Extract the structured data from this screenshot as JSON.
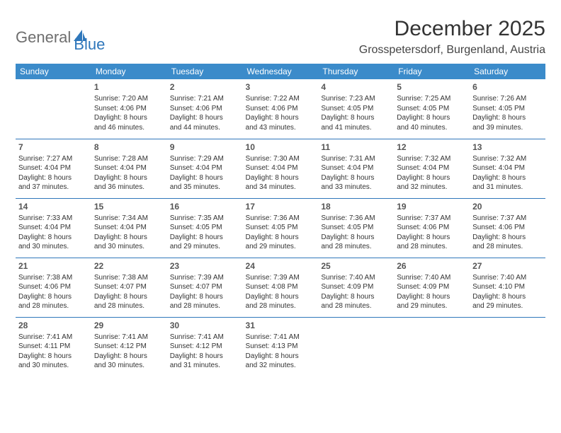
{
  "brand": {
    "word1": "General",
    "word2": "Blue",
    "color1": "#6e6e6e",
    "color2": "#2f77bb"
  },
  "title": "December 2025",
  "location": "Grosspetersdorf, Burgenland, Austria",
  "header_bg": "#3b8bca",
  "rule_color": "#2f77bb",
  "weekdays": [
    "Sunday",
    "Monday",
    "Tuesday",
    "Wednesday",
    "Thursday",
    "Friday",
    "Saturday"
  ],
  "weeks": [
    [
      null,
      {
        "n": "1",
        "sr": "Sunrise: 7:20 AM",
        "ss": "Sunset: 4:06 PM",
        "d1": "Daylight: 8 hours",
        "d2": "and 46 minutes."
      },
      {
        "n": "2",
        "sr": "Sunrise: 7:21 AM",
        "ss": "Sunset: 4:06 PM",
        "d1": "Daylight: 8 hours",
        "d2": "and 44 minutes."
      },
      {
        "n": "3",
        "sr": "Sunrise: 7:22 AM",
        "ss": "Sunset: 4:06 PM",
        "d1": "Daylight: 8 hours",
        "d2": "and 43 minutes."
      },
      {
        "n": "4",
        "sr": "Sunrise: 7:23 AM",
        "ss": "Sunset: 4:05 PM",
        "d1": "Daylight: 8 hours",
        "d2": "and 41 minutes."
      },
      {
        "n": "5",
        "sr": "Sunrise: 7:25 AM",
        "ss": "Sunset: 4:05 PM",
        "d1": "Daylight: 8 hours",
        "d2": "and 40 minutes."
      },
      {
        "n": "6",
        "sr": "Sunrise: 7:26 AM",
        "ss": "Sunset: 4:05 PM",
        "d1": "Daylight: 8 hours",
        "d2": "and 39 minutes."
      }
    ],
    [
      {
        "n": "7",
        "sr": "Sunrise: 7:27 AM",
        "ss": "Sunset: 4:04 PM",
        "d1": "Daylight: 8 hours",
        "d2": "and 37 minutes."
      },
      {
        "n": "8",
        "sr": "Sunrise: 7:28 AM",
        "ss": "Sunset: 4:04 PM",
        "d1": "Daylight: 8 hours",
        "d2": "and 36 minutes."
      },
      {
        "n": "9",
        "sr": "Sunrise: 7:29 AM",
        "ss": "Sunset: 4:04 PM",
        "d1": "Daylight: 8 hours",
        "d2": "and 35 minutes."
      },
      {
        "n": "10",
        "sr": "Sunrise: 7:30 AM",
        "ss": "Sunset: 4:04 PM",
        "d1": "Daylight: 8 hours",
        "d2": "and 34 minutes."
      },
      {
        "n": "11",
        "sr": "Sunrise: 7:31 AM",
        "ss": "Sunset: 4:04 PM",
        "d1": "Daylight: 8 hours",
        "d2": "and 33 minutes."
      },
      {
        "n": "12",
        "sr": "Sunrise: 7:32 AM",
        "ss": "Sunset: 4:04 PM",
        "d1": "Daylight: 8 hours",
        "d2": "and 32 minutes."
      },
      {
        "n": "13",
        "sr": "Sunrise: 7:32 AM",
        "ss": "Sunset: 4:04 PM",
        "d1": "Daylight: 8 hours",
        "d2": "and 31 minutes."
      }
    ],
    [
      {
        "n": "14",
        "sr": "Sunrise: 7:33 AM",
        "ss": "Sunset: 4:04 PM",
        "d1": "Daylight: 8 hours",
        "d2": "and 30 minutes."
      },
      {
        "n": "15",
        "sr": "Sunrise: 7:34 AM",
        "ss": "Sunset: 4:04 PM",
        "d1": "Daylight: 8 hours",
        "d2": "and 30 minutes."
      },
      {
        "n": "16",
        "sr": "Sunrise: 7:35 AM",
        "ss": "Sunset: 4:05 PM",
        "d1": "Daylight: 8 hours",
        "d2": "and 29 minutes."
      },
      {
        "n": "17",
        "sr": "Sunrise: 7:36 AM",
        "ss": "Sunset: 4:05 PM",
        "d1": "Daylight: 8 hours",
        "d2": "and 29 minutes."
      },
      {
        "n": "18",
        "sr": "Sunrise: 7:36 AM",
        "ss": "Sunset: 4:05 PM",
        "d1": "Daylight: 8 hours",
        "d2": "and 28 minutes."
      },
      {
        "n": "19",
        "sr": "Sunrise: 7:37 AM",
        "ss": "Sunset: 4:06 PM",
        "d1": "Daylight: 8 hours",
        "d2": "and 28 minutes."
      },
      {
        "n": "20",
        "sr": "Sunrise: 7:37 AM",
        "ss": "Sunset: 4:06 PM",
        "d1": "Daylight: 8 hours",
        "d2": "and 28 minutes."
      }
    ],
    [
      {
        "n": "21",
        "sr": "Sunrise: 7:38 AM",
        "ss": "Sunset: 4:06 PM",
        "d1": "Daylight: 8 hours",
        "d2": "and 28 minutes."
      },
      {
        "n": "22",
        "sr": "Sunrise: 7:38 AM",
        "ss": "Sunset: 4:07 PM",
        "d1": "Daylight: 8 hours",
        "d2": "and 28 minutes."
      },
      {
        "n": "23",
        "sr": "Sunrise: 7:39 AM",
        "ss": "Sunset: 4:07 PM",
        "d1": "Daylight: 8 hours",
        "d2": "and 28 minutes."
      },
      {
        "n": "24",
        "sr": "Sunrise: 7:39 AM",
        "ss": "Sunset: 4:08 PM",
        "d1": "Daylight: 8 hours",
        "d2": "and 28 minutes."
      },
      {
        "n": "25",
        "sr": "Sunrise: 7:40 AM",
        "ss": "Sunset: 4:09 PM",
        "d1": "Daylight: 8 hours",
        "d2": "and 28 minutes."
      },
      {
        "n": "26",
        "sr": "Sunrise: 7:40 AM",
        "ss": "Sunset: 4:09 PM",
        "d1": "Daylight: 8 hours",
        "d2": "and 29 minutes."
      },
      {
        "n": "27",
        "sr": "Sunrise: 7:40 AM",
        "ss": "Sunset: 4:10 PM",
        "d1": "Daylight: 8 hours",
        "d2": "and 29 minutes."
      }
    ],
    [
      {
        "n": "28",
        "sr": "Sunrise: 7:41 AM",
        "ss": "Sunset: 4:11 PM",
        "d1": "Daylight: 8 hours",
        "d2": "and 30 minutes."
      },
      {
        "n": "29",
        "sr": "Sunrise: 7:41 AM",
        "ss": "Sunset: 4:12 PM",
        "d1": "Daylight: 8 hours",
        "d2": "and 30 minutes."
      },
      {
        "n": "30",
        "sr": "Sunrise: 7:41 AM",
        "ss": "Sunset: 4:12 PM",
        "d1": "Daylight: 8 hours",
        "d2": "and 31 minutes."
      },
      {
        "n": "31",
        "sr": "Sunrise: 7:41 AM",
        "ss": "Sunset: 4:13 PM",
        "d1": "Daylight: 8 hours",
        "d2": "and 32 minutes."
      },
      null,
      null,
      null
    ]
  ]
}
